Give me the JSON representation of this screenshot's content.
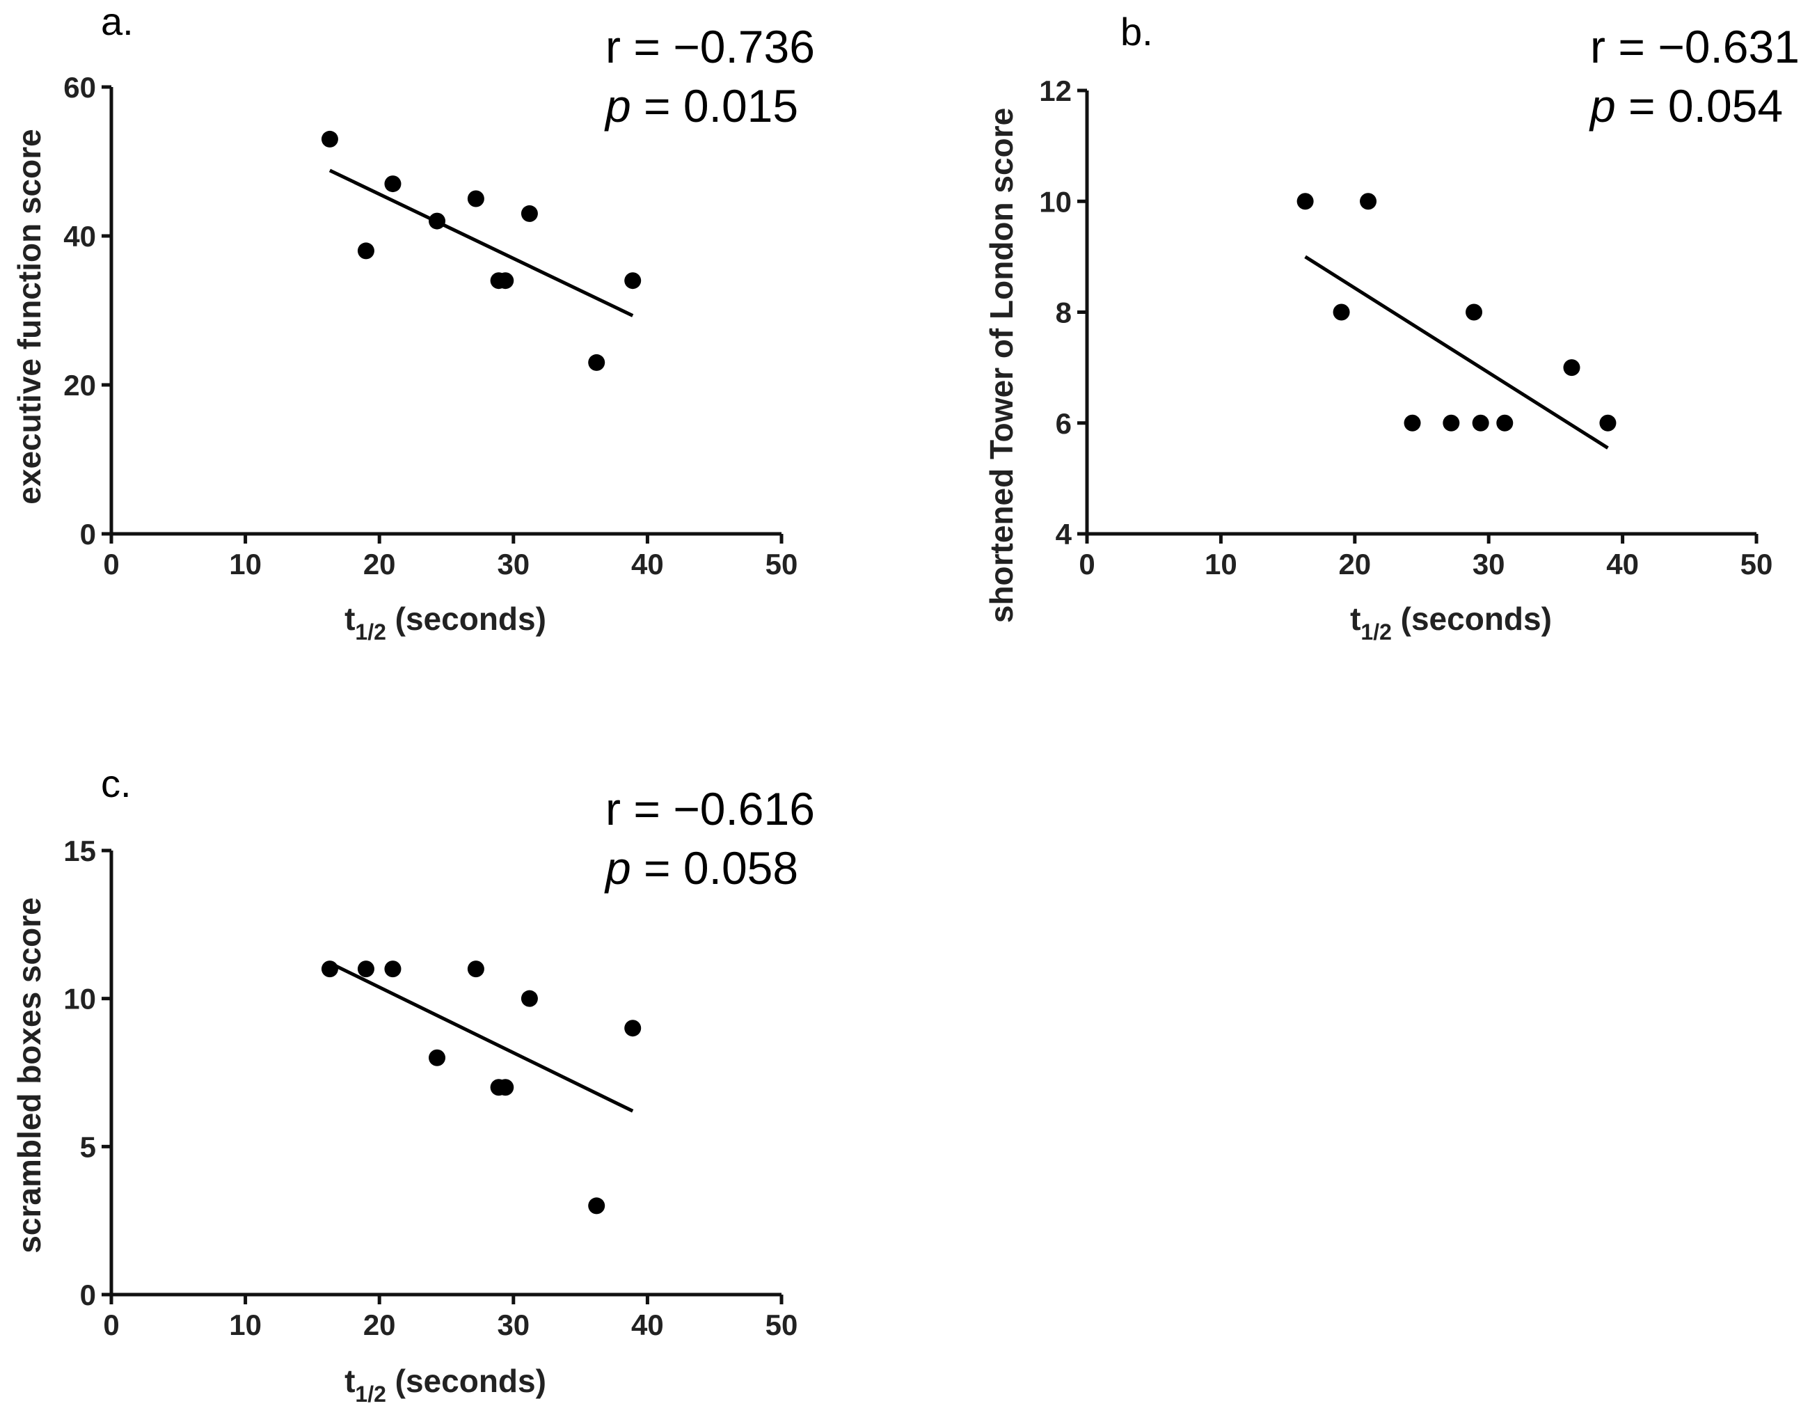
{
  "chart_data": [
    {
      "id": "a",
      "type": "scatter",
      "panel_label": "a.",
      "stat_r_label": "r = −0.736",
      "stat_p_symbol": "p",
      "stat_p_value": " = 0.015",
      "xlabel_main": "t",
      "xlabel_sub": "1/2",
      "xlabel_rest": " (seconds)",
      "ylabel": "executive function score",
      "xlim": [
        0,
        50
      ],
      "ylim": [
        0,
        60
      ],
      "xticks": [
        0,
        10,
        20,
        30,
        40,
        50
      ],
      "yticks": [
        0,
        20,
        40,
        60
      ],
      "points": [
        {
          "x": 16.3,
          "y": 53
        },
        {
          "x": 19.0,
          "y": 38
        },
        {
          "x": 21.0,
          "y": 47
        },
        {
          "x": 24.3,
          "y": 42
        },
        {
          "x": 27.2,
          "y": 45
        },
        {
          "x": 28.9,
          "y": 34
        },
        {
          "x": 29.4,
          "y": 34
        },
        {
          "x": 31.2,
          "y": 43
        },
        {
          "x": 36.2,
          "y": 23
        },
        {
          "x": 38.9,
          "y": 34
        }
      ],
      "fit_line": [
        {
          "x": 16.3,
          "y": 48.8
        },
        {
          "x": 38.9,
          "y": 29.3
        }
      ]
    },
    {
      "id": "b",
      "type": "scatter",
      "panel_label": "b.",
      "stat_r_label": "r = −0.631",
      "stat_p_symbol": "p",
      "stat_p_value": " = 0.054",
      "xlabel_main": "t",
      "xlabel_sub": "1/2",
      "xlabel_rest": " (seconds)",
      "ylabel": "shortened Tower of London score",
      "xlim": [
        0,
        50
      ],
      "ylim": [
        4,
        12
      ],
      "xticks": [
        0,
        10,
        20,
        30,
        40,
        50
      ],
      "yticks": [
        4,
        6,
        8,
        10,
        12
      ],
      "points": [
        {
          "x": 16.3,
          "y": 10
        },
        {
          "x": 19.0,
          "y": 8
        },
        {
          "x": 21.0,
          "y": 10
        },
        {
          "x": 24.3,
          "y": 6
        },
        {
          "x": 27.2,
          "y": 6
        },
        {
          "x": 28.9,
          "y": 8
        },
        {
          "x": 29.4,
          "y": 6
        },
        {
          "x": 31.2,
          "y": 6
        },
        {
          "x": 36.2,
          "y": 7
        },
        {
          "x": 38.9,
          "y": 6
        }
      ],
      "fit_line": [
        {
          "x": 16.3,
          "y": 9.0
        },
        {
          "x": 38.9,
          "y": 5.55
        }
      ]
    },
    {
      "id": "c",
      "type": "scatter",
      "panel_label": "c.",
      "stat_r_label": "r = −0.616",
      "stat_p_symbol": "p",
      "stat_p_value": " = 0.058",
      "xlabel_main": "t",
      "xlabel_sub": "1/2",
      "xlabel_rest": " (seconds)",
      "ylabel": "scrambled boxes score",
      "xlim": [
        0,
        50
      ],
      "ylim": [
        0,
        15
      ],
      "xticks": [
        0,
        10,
        20,
        30,
        40,
        50
      ],
      "yticks": [
        0,
        5,
        10,
        15
      ],
      "points": [
        {
          "x": 16.3,
          "y": 11
        },
        {
          "x": 19.0,
          "y": 11
        },
        {
          "x": 21.0,
          "y": 11
        },
        {
          "x": 24.3,
          "y": 8
        },
        {
          "x": 27.2,
          "y": 11
        },
        {
          "x": 28.9,
          "y": 7
        },
        {
          "x": 29.4,
          "y": 7
        },
        {
          "x": 31.2,
          "y": 10
        },
        {
          "x": 36.2,
          "y": 3
        },
        {
          "x": 38.9,
          "y": 9
        }
      ],
      "fit_line": [
        {
          "x": 16.3,
          "y": 11.2
        },
        {
          "x": 38.9,
          "y": 6.2
        }
      ]
    }
  ]
}
